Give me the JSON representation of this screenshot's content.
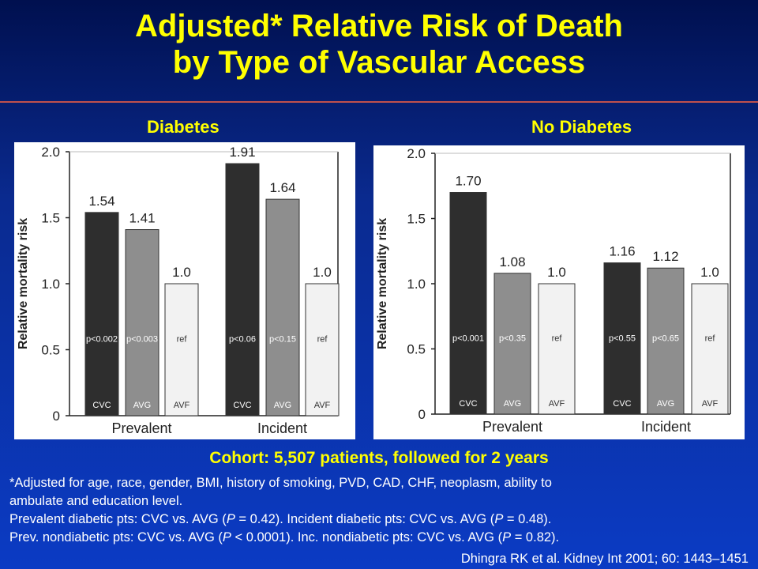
{
  "slide": {
    "title_line1": "Adjusted* Relative Risk of Death",
    "title_line2": "by Type of Vascular Access",
    "cohort": "Cohort: 5,507 patients, followed for 2 years",
    "note1": "*Adjusted for age, race, gender, BMI, history of smoking, PVD, CAD, CHF, neoplasm, ability to",
    "note2": "ambulate and education level.",
    "note3_parts": [
      "Prevalent diabetic pts: CVC vs. AVG (",
      "P",
      " = 0.42). Incident diabetic pts: CVC vs. AVG (",
      "P",
      " = 0.48)."
    ],
    "note4_parts": [
      "Prev. nondiabetic pts: CVC vs. AVG (",
      "P",
      " < 0.0001). Inc. nondiabetic pts: CVC vs. AVG (",
      "P",
      " = 0.82)."
    ],
    "citation": "Dhingra RK et al. Kidney Int 2001; 60: 1443–1451"
  },
  "chart_data": [
    {
      "type": "bar",
      "title": "Diabetes",
      "ylabel": "Relative mortality risk",
      "ylim": [
        0,
        2.0
      ],
      "yticks": [
        "0",
        "0.5",
        "1.0",
        "1.5",
        "2.0"
      ],
      "groups": [
        {
          "label": "Prevalent",
          "bars": [
            {
              "category": "CVC",
              "value": 1.54,
              "value_label": "1.54",
              "p_label": "p<0.002",
              "color": "#2e2e2e"
            },
            {
              "category": "AVG",
              "value": 1.41,
              "value_label": "1.41",
              "p_label": "p<0.003",
              "color": "#8e8e8e"
            },
            {
              "category": "AVF",
              "value": 1.0,
              "value_label": "1.0",
              "p_label": "ref",
              "color": "#f2f2f2"
            }
          ]
        },
        {
          "label": "Incident",
          "bars": [
            {
              "category": "CVC",
              "value": 1.91,
              "value_label": "1.91",
              "p_label": "p<0.06",
              "color": "#2e2e2e"
            },
            {
              "category": "AVG",
              "value": 1.64,
              "value_label": "1.64",
              "p_label": "p<0.15",
              "color": "#8e8e8e"
            },
            {
              "category": "AVF",
              "value": 1.0,
              "value_label": "1.0",
              "p_label": "ref",
              "color": "#f2f2f2"
            }
          ]
        }
      ]
    },
    {
      "type": "bar",
      "title": "No Diabetes",
      "ylabel": "Relative mortality risk",
      "ylim": [
        0,
        2.0
      ],
      "yticks": [
        "0",
        "0.5",
        "1.0",
        "1.5",
        "2.0"
      ],
      "groups": [
        {
          "label": "Prevalent",
          "bars": [
            {
              "category": "CVC",
              "value": 1.7,
              "value_label": "1.70",
              "p_label": "p<0.001",
              "color": "#2e2e2e"
            },
            {
              "category": "AVG",
              "value": 1.08,
              "value_label": "1.08",
              "p_label": "p<0.35",
              "color": "#8e8e8e"
            },
            {
              "category": "AVF",
              "value": 1.0,
              "value_label": "1.0",
              "p_label": "ref",
              "color": "#f2f2f2"
            }
          ]
        },
        {
          "label": "Incident",
          "bars": [
            {
              "category": "CVC",
              "value": 1.16,
              "value_label": "1.16",
              "p_label": "p<0.55",
              "color": "#2e2e2e"
            },
            {
              "category": "AVG",
              "value": 1.12,
              "value_label": "1.12",
              "p_label": "p<0.65",
              "color": "#8e8e8e"
            },
            {
              "category": "AVF",
              "value": 1.0,
              "value_label": "1.0",
              "p_label": "ref",
              "color": "#f2f2f2"
            }
          ]
        }
      ]
    }
  ]
}
